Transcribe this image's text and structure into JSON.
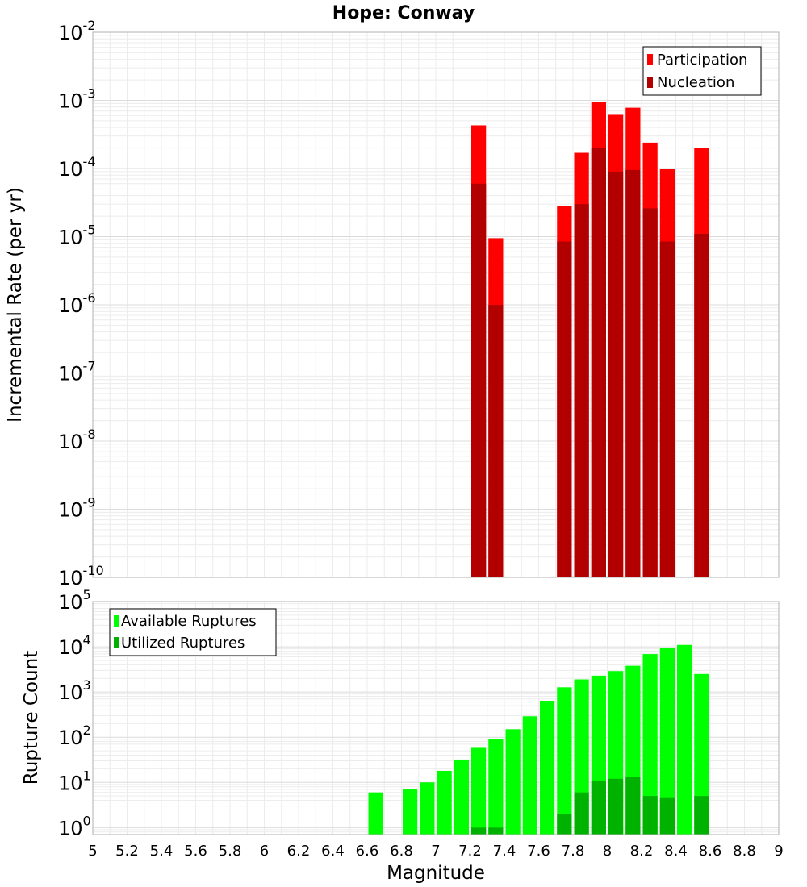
{
  "chart_data": [
    {
      "type": "bar",
      "panel": "top",
      "title": "Hope: Conway",
      "xlabel": "Magnitude",
      "ylabel": "Incremental Rate (per yr)",
      "yscale": "log",
      "ylim": [
        1e-10,
        0.01
      ],
      "xlim": [
        5,
        9
      ],
      "grid": true,
      "legend_position": "top-right",
      "y_tick_base": "10",
      "y_tick_exponents": [
        "-10",
        "-9",
        "-8",
        "-7",
        "-6",
        "-5",
        "-4",
        "-3",
        "-2"
      ],
      "colors": {
        "Participation": "#ff0000",
        "Nucleation": "#b20000"
      },
      "x": [
        7.25,
        7.35,
        7.75,
        7.85,
        7.95,
        8.05,
        8.15,
        8.25,
        8.35,
        8.55
      ],
      "series": [
        {
          "name": "Participation",
          "values": [
            0.00043,
            9.5e-06,
            2.8e-05,
            0.00017,
            0.00095,
            0.00063,
            0.00078,
            0.00024,
            0.0001,
            0.0002
          ]
        },
        {
          "name": "Nucleation",
          "values": [
            6e-05,
            1e-06,
            8.5e-06,
            3e-05,
            0.0002,
            9e-05,
            9.5e-05,
            2.6e-05,
            8.5e-06,
            1.1e-05
          ]
        }
      ]
    },
    {
      "type": "bar",
      "panel": "bottom",
      "xlabel": "Magnitude",
      "ylabel": "Rupture Count",
      "yscale": "log",
      "ylim": [
        0.7,
        100000.0
      ],
      "xlim": [
        5,
        9
      ],
      "grid": true,
      "legend_position": "top-left",
      "y_tick_base": "10",
      "y_tick_exponents": [
        "0",
        "1",
        "2",
        "3",
        "4",
        "5"
      ],
      "x_ticks": [
        "5",
        "5.2",
        "5.4",
        "5.6",
        "5.8",
        "6",
        "6.2",
        "6.4",
        "6.6",
        "6.8",
        "7",
        "7.2",
        "7.4",
        "7.6",
        "7.8",
        "8",
        "8.2",
        "8.4",
        "8.6",
        "8.8",
        "9"
      ],
      "colors": {
        "Available Ruptures": "#00ff00",
        "Utilized Ruptures": "#00b200"
      },
      "x": [
        6.65,
        6.85,
        6.95,
        7.05,
        7.15,
        7.25,
        7.35,
        7.45,
        7.55,
        7.65,
        7.75,
        7.85,
        7.95,
        8.05,
        8.15,
        8.25,
        8.35,
        8.45,
        8.55
      ],
      "series": [
        {
          "name": "Available Ruptures",
          "values": [
            6,
            7,
            10,
            18,
            32,
            58,
            90,
            150,
            290,
            640,
            1270,
            1900,
            2300,
            2900,
            3800,
            6900,
            9600,
            11000,
            2500
          ]
        },
        {
          "name": "Utilized Ruptures",
          "values": [
            null,
            null,
            null,
            null,
            null,
            1,
            1,
            null,
            null,
            null,
            2,
            6,
            11,
            12,
            13,
            5,
            4.5,
            null,
            5
          ]
        }
      ]
    }
  ]
}
